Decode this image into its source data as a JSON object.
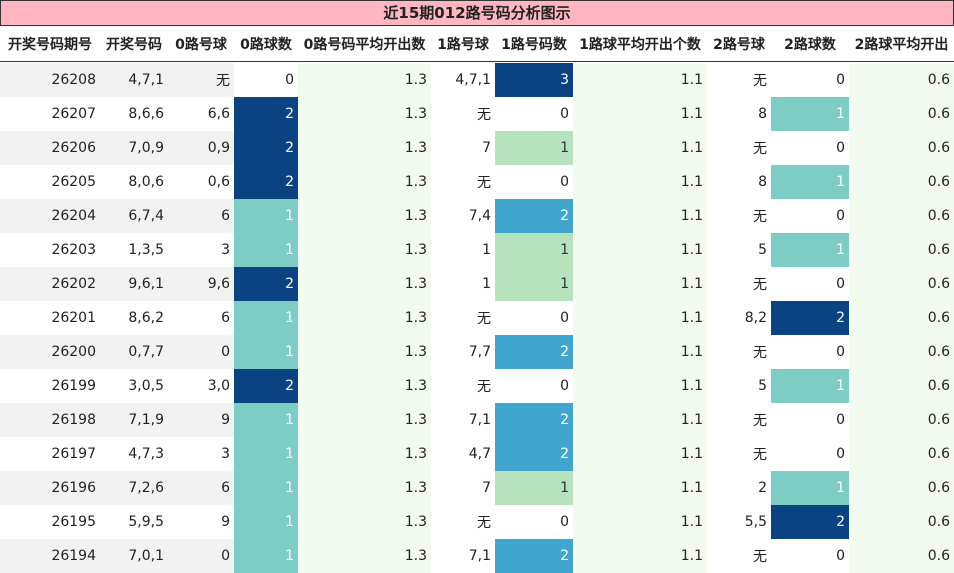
{
  "title": "近15期012路号码分析图示",
  "colors": {
    "count_0": "#ffffff",
    "count_1_route0": "#7ecdc4",
    "count_1_route1": "#b6e3bc",
    "count_1_route2": "#7ecdc4",
    "count_2_route0": "#0a4282",
    "count_2_route1": "#41a6cd",
    "count_2_route2": "#0a4282",
    "count_3": "#0a4282"
  },
  "chart_data": {
    "type": "table",
    "columns": [
      "开奖号码期号",
      "开奖号码",
      "0路号球",
      "0路球数",
      "0路号码平均开出数",
      "1路号球",
      "1路号码数",
      "1路球平均开出个数",
      "2路号球",
      "2路球数",
      "2路球平均开出"
    ],
    "rows": [
      [
        "26208",
        "4,7,1",
        "无",
        "0",
        "1.3",
        "4,7,1",
        "3",
        "1.1",
        "无",
        "0",
        "0.6"
      ],
      [
        "26207",
        "8,6,6",
        "6,6",
        "2",
        "1.3",
        "无",
        "0",
        "1.1",
        "8",
        "1",
        "0.6"
      ],
      [
        "26206",
        "7,0,9",
        "0,9",
        "2",
        "1.3",
        "7",
        "1",
        "1.1",
        "无",
        "0",
        "0.6"
      ],
      [
        "26205",
        "8,0,6",
        "0,6",
        "2",
        "1.3",
        "无",
        "0",
        "1.1",
        "8",
        "1",
        "0.6"
      ],
      [
        "26204",
        "6,7,4",
        "6",
        "1",
        "1.3",
        "7,4",
        "2",
        "1.1",
        "无",
        "0",
        "0.6"
      ],
      [
        "26203",
        "1,3,5",
        "3",
        "1",
        "1.3",
        "1",
        "1",
        "1.1",
        "5",
        "1",
        "0.6"
      ],
      [
        "26202",
        "9,6,1",
        "9,6",
        "2",
        "1.3",
        "1",
        "1",
        "1.1",
        "无",
        "0",
        "0.6"
      ],
      [
        "26201",
        "8,6,2",
        "6",
        "1",
        "1.3",
        "无",
        "0",
        "1.1",
        "8,2",
        "2",
        "0.6"
      ],
      [
        "26200",
        "0,7,7",
        "0",
        "1",
        "1.3",
        "7,7",
        "2",
        "1.1",
        "无",
        "0",
        "0.6"
      ],
      [
        "26199",
        "3,0,5",
        "3,0",
        "2",
        "1.3",
        "无",
        "0",
        "1.1",
        "5",
        "1",
        "0.6"
      ],
      [
        "26198",
        "7,1,9",
        "9",
        "1",
        "1.3",
        "7,1",
        "2",
        "1.1",
        "无",
        "0",
        "0.6"
      ],
      [
        "26197",
        "4,7,3",
        "3",
        "1",
        "1.3",
        "4,7",
        "2",
        "1.1",
        "无",
        "0",
        "0.6"
      ],
      [
        "26196",
        "7,2,6",
        "6",
        "1",
        "1.3",
        "7",
        "1",
        "1.1",
        "2",
        "1",
        "0.6"
      ],
      [
        "26195",
        "5,9,5",
        "9",
        "1",
        "1.3",
        "无",
        "0",
        "1.1",
        "5,5",
        "2",
        "0.6"
      ],
      [
        "26194",
        "7,0,1",
        "0",
        "1",
        "1.3",
        "7,1",
        "2",
        "1.1",
        "无",
        "0",
        "0.6"
      ]
    ]
  }
}
